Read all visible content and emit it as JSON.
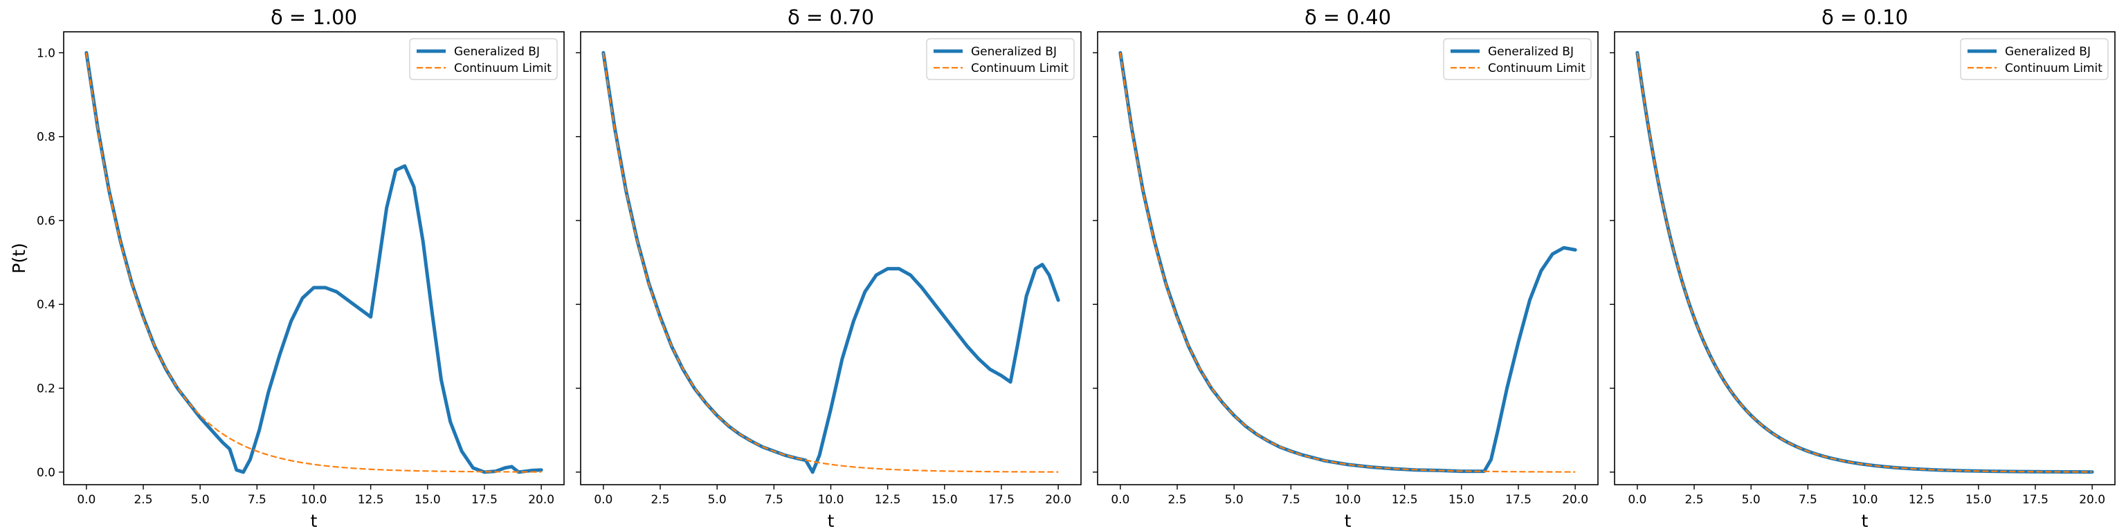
{
  "chart_data": [
    {
      "type": "line",
      "title": "δ = 1.00",
      "xlabel": "t",
      "ylabel": "P(t)",
      "xlim": [
        -1,
        21
      ],
      "ylim": [
        -0.03,
        1.05
      ],
      "xticks": [
        0.0,
        2.5,
        5.0,
        7.5,
        10.0,
        12.5,
        15.0,
        17.5,
        20.0
      ],
      "xtick_labels": [
        "0.0",
        "2.5",
        "5.0",
        "7.5",
        "10.0",
        "12.5",
        "15.0",
        "17.5",
        "20.0"
      ],
      "yticks": [
        0.0,
        0.2,
        0.4,
        0.6,
        0.8,
        1.0
      ],
      "ytick_labels": [
        "0.0",
        "0.2",
        "0.4",
        "0.6",
        "0.8",
        "1.0"
      ],
      "grid": false,
      "legend": "top-right",
      "series": [
        {
          "name": "Generalized BJ",
          "color": "#1f77b4",
          "style": "solid",
          "x": [
            0,
            0.5,
            1,
            1.5,
            2,
            2.5,
            3,
            3.5,
            4,
            4.5,
            5,
            5.5,
            6,
            6.3,
            6.6,
            6.9,
            7.2,
            7.6,
            8,
            8.5,
            9,
            9.5,
            10,
            10.5,
            11,
            11.5,
            12,
            12.5,
            12.8,
            13.2,
            13.6,
            14.0,
            14.4,
            14.8,
            15.2,
            15.6,
            16,
            16.5,
            17,
            17.5,
            18,
            18.4,
            18.7,
            19.0,
            19.3,
            19.6,
            20.0
          ],
          "y": [
            1.0,
            0.82,
            0.67,
            0.55,
            0.45,
            0.37,
            0.3,
            0.245,
            0.2,
            0.165,
            0.13,
            0.1,
            0.07,
            0.055,
            0.005,
            0.0,
            0.03,
            0.1,
            0.19,
            0.28,
            0.36,
            0.415,
            0.44,
            0.44,
            0.43,
            0.41,
            0.39,
            0.37,
            0.48,
            0.63,
            0.72,
            0.73,
            0.68,
            0.55,
            0.38,
            0.22,
            0.12,
            0.05,
            0.01,
            0.0,
            0.002,
            0.01,
            0.013,
            0.0,
            0.002,
            0.004,
            0.005
          ]
        },
        {
          "name": "Continuum Limit",
          "color": "#ff7f0e",
          "style": "dashed",
          "function": "exp(-0.4 t)",
          "x_range": [
            0,
            20
          ]
        }
      ]
    },
    {
      "type": "line",
      "title": "δ = 0.70",
      "xlabel": "t",
      "ylabel": "",
      "xlim": [
        -1,
        21
      ],
      "ylim": [
        -0.03,
        1.05
      ],
      "xticks": [
        0.0,
        2.5,
        5.0,
        7.5,
        10.0,
        12.5,
        15.0,
        17.5,
        20.0
      ],
      "xtick_labels": [
        "0.0",
        "2.5",
        "5.0",
        "7.5",
        "10.0",
        "12.5",
        "15.0",
        "17.5",
        "20.0"
      ],
      "yticks": [
        0.0,
        0.2,
        0.4,
        0.6,
        0.8,
        1.0
      ],
      "ytick_labels": [
        "",
        "",
        "",
        "",
        "",
        ""
      ],
      "grid": false,
      "legend": "top-right",
      "series": [
        {
          "name": "Generalized BJ",
          "color": "#1f77b4",
          "style": "solid",
          "x": [
            0,
            0.5,
            1,
            1.5,
            2,
            2.5,
            3,
            3.5,
            4,
            4.5,
            5,
            5.5,
            6,
            6.5,
            7,
            7.5,
            8,
            8.5,
            8.9,
            9.2,
            9.5,
            10,
            10.5,
            11,
            11.5,
            12,
            12.5,
            13,
            13.5,
            14,
            14.5,
            15,
            15.5,
            16,
            16.5,
            17,
            17.5,
            17.9,
            18.2,
            18.6,
            19.0,
            19.3,
            19.6,
            20.0
          ],
          "y": [
            1.0,
            0.82,
            0.67,
            0.55,
            0.45,
            0.37,
            0.3,
            0.245,
            0.2,
            0.165,
            0.135,
            0.11,
            0.09,
            0.074,
            0.06,
            0.05,
            0.04,
            0.033,
            0.028,
            0.0,
            0.04,
            0.15,
            0.27,
            0.36,
            0.43,
            0.47,
            0.485,
            0.485,
            0.47,
            0.44,
            0.405,
            0.37,
            0.335,
            0.3,
            0.27,
            0.245,
            0.23,
            0.215,
            0.3,
            0.42,
            0.485,
            0.495,
            0.47,
            0.41
          ]
        },
        {
          "name": "Continuum Limit",
          "color": "#ff7f0e",
          "style": "dashed",
          "function": "exp(-0.4 t)",
          "x_range": [
            0,
            20
          ]
        }
      ]
    },
    {
      "type": "line",
      "title": "δ = 0.40",
      "xlabel": "t",
      "ylabel": "",
      "xlim": [
        -1,
        21
      ],
      "ylim": [
        -0.03,
        1.05
      ],
      "xticks": [
        0.0,
        2.5,
        5.0,
        7.5,
        10.0,
        12.5,
        15.0,
        17.5,
        20.0
      ],
      "xtick_labels": [
        "0.0",
        "2.5",
        "5.0",
        "7.5",
        "10.0",
        "12.5",
        "15.0",
        "17.5",
        "20.0"
      ],
      "yticks": [
        0.0,
        0.2,
        0.4,
        0.6,
        0.8,
        1.0
      ],
      "ytick_labels": [
        "",
        "",
        "",
        "",
        "",
        ""
      ],
      "grid": false,
      "legend": "top-right",
      "series": [
        {
          "name": "Generalized BJ",
          "color": "#1f77b4",
          "style": "solid",
          "x": [
            0,
            0.5,
            1,
            1.5,
            2,
            2.5,
            3,
            3.5,
            4,
            4.5,
            5,
            5.5,
            6,
            6.5,
            7,
            7.5,
            8,
            9,
            10,
            11,
            12,
            13,
            14,
            15,
            15.5,
            16.0,
            16.3,
            16.6,
            17.0,
            17.5,
            18.0,
            18.5,
            19.0,
            19.5,
            20.0
          ],
          "y": [
            1.0,
            0.82,
            0.67,
            0.55,
            0.45,
            0.37,
            0.3,
            0.245,
            0.2,
            0.165,
            0.135,
            0.11,
            0.09,
            0.074,
            0.06,
            0.05,
            0.041,
            0.027,
            0.018,
            0.012,
            0.008,
            0.005,
            0.004,
            0.002,
            0.002,
            0.002,
            0.03,
            0.1,
            0.2,
            0.31,
            0.41,
            0.48,
            0.52,
            0.535,
            0.53
          ]
        },
        {
          "name": "Continuum Limit",
          "color": "#ff7f0e",
          "style": "dashed",
          "function": "exp(-0.4 t)",
          "x_range": [
            0,
            20
          ]
        }
      ]
    },
    {
      "type": "line",
      "title": "δ = 0.10",
      "xlabel": "t",
      "ylabel": "",
      "xlim": [
        -1,
        21
      ],
      "ylim": [
        -0.03,
        1.05
      ],
      "xticks": [
        0.0,
        2.5,
        5.0,
        7.5,
        10.0,
        12.5,
        15.0,
        17.5,
        20.0
      ],
      "xtick_labels": [
        "0.0",
        "2.5",
        "5.0",
        "7.5",
        "10.0",
        "12.5",
        "15.0",
        "17.5",
        "20.0"
      ],
      "yticks": [
        0.0,
        0.2,
        0.4,
        0.6,
        0.8,
        1.0
      ],
      "ytick_labels": [
        "",
        "",
        "",
        "",
        "",
        ""
      ],
      "grid": false,
      "legend": "top-right",
      "series": [
        {
          "name": "Generalized BJ",
          "color": "#1f77b4",
          "style": "solid",
          "function": "exp(-0.4 t)",
          "x_range": [
            0,
            20
          ]
        },
        {
          "name": "Continuum Limit",
          "color": "#ff7f0e",
          "style": "dashed",
          "function": "exp(-0.4 t)",
          "x_range": [
            0,
            20
          ]
        }
      ]
    }
  ]
}
